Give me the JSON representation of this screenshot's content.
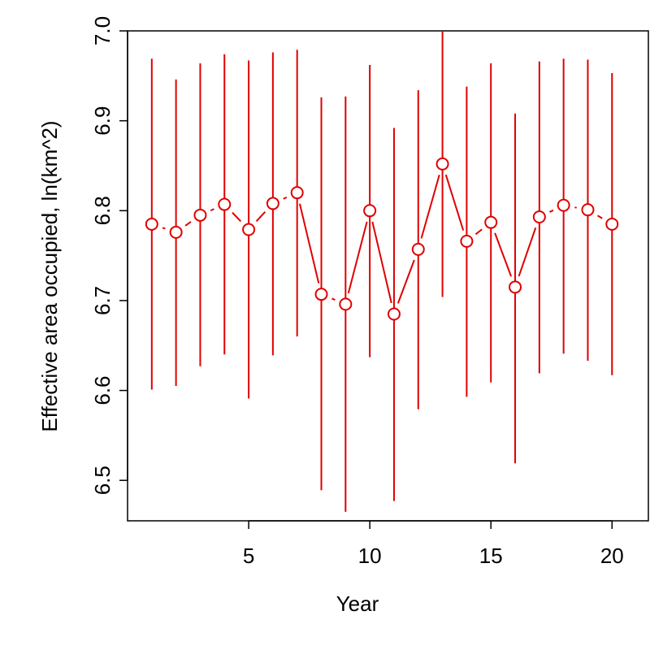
{
  "chart_data": {
    "type": "scatter",
    "title": "",
    "xlabel": "Year",
    "ylabel": "Effective area occupied, ln(km^2)",
    "xlim": [
      0,
      21.5
    ],
    "ylim": [
      6.455,
      7.0
    ],
    "x_ticks": [
      "5",
      "10",
      "15",
      "20"
    ],
    "y_ticks": [
      "6.5",
      "6.6",
      "6.7",
      "6.8",
      "6.9",
      "7.0"
    ],
    "grid": false,
    "legend": "none",
    "connector": "broken line between points",
    "color": "#e00000",
    "series": [
      {
        "x": [
          1,
          2,
          3,
          4,
          5,
          6,
          7,
          8,
          9,
          10,
          11,
          12,
          13,
          14,
          15,
          16,
          17,
          18,
          19,
          20
        ],
        "y": [
          6.785,
          6.776,
          6.795,
          6.807,
          6.779,
          6.808,
          6.82,
          6.707,
          6.696,
          6.8,
          6.685,
          6.757,
          6.852,
          6.766,
          6.787,
          6.715,
          6.793,
          6.806,
          6.801,
          6.785
        ],
        "lower": [
          6.601,
          6.605,
          6.627,
          6.64,
          6.591,
          6.639,
          6.66,
          6.489,
          6.465,
          6.637,
          6.477,
          6.579,
          6.704,
          6.593,
          6.609,
          6.519,
          6.619,
          6.641,
          6.633,
          6.617
        ],
        "upper": [
          6.969,
          6.946,
          6.964,
          6.974,
          6.967,
          6.976,
          6.979,
          6.926,
          6.927,
          6.962,
          6.892,
          6.934,
          7.0,
          6.938,
          6.964,
          6.908,
          6.966,
          6.969,
          6.968,
          6.953
        ]
      }
    ]
  }
}
